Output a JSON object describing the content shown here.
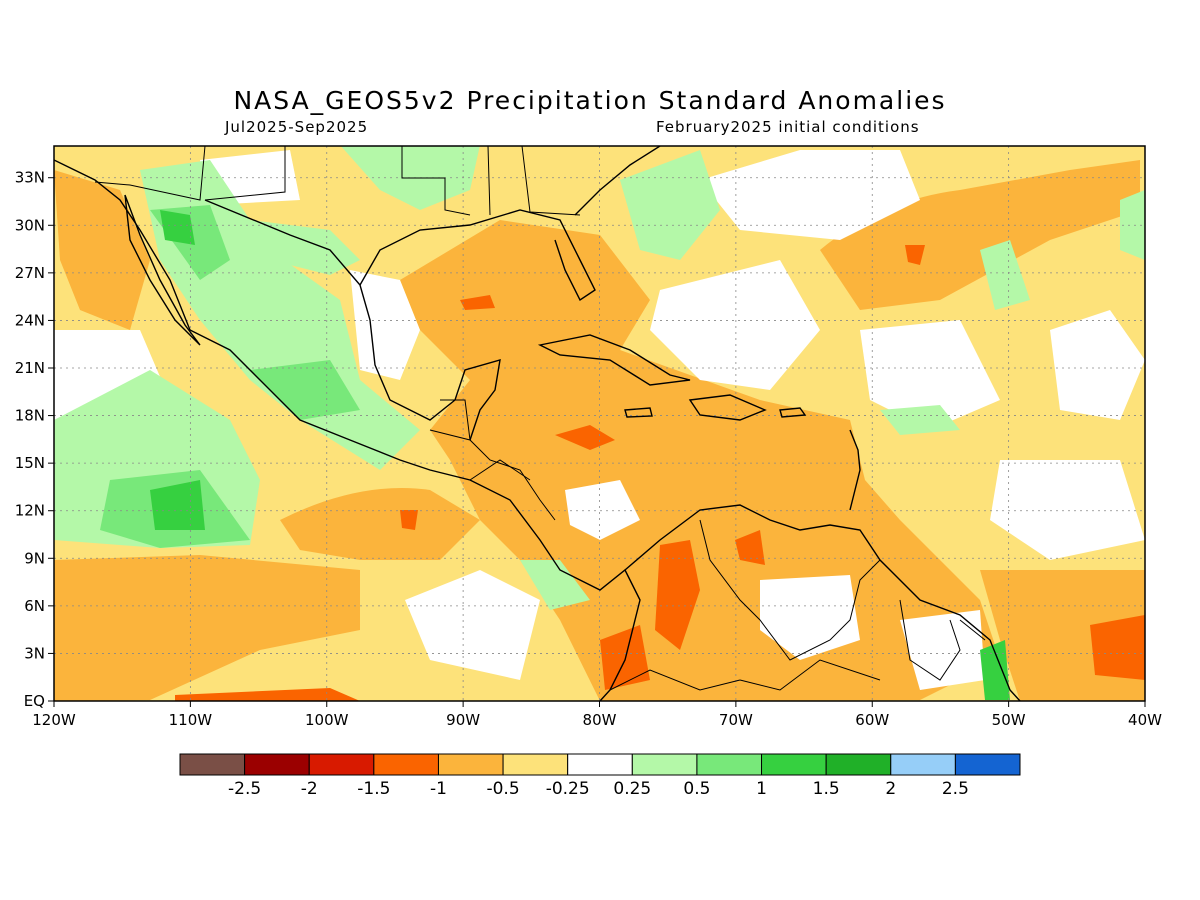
{
  "header": {
    "title": "NASA_GEOS5v2 Precipitation Standard Anomalies",
    "period": "Jul2025-Sep2025",
    "init": "February2025 initial conditions"
  },
  "map": {
    "lon_range": [
      -120,
      -40
    ],
    "lat_range": [
      0,
      35
    ],
    "x_ticks": [
      {
        "lon": -120,
        "label": "120W"
      },
      {
        "lon": -110,
        "label": "110W"
      },
      {
        "lon": -100,
        "label": "100W"
      },
      {
        "lon": -90,
        "label": "90W"
      },
      {
        "lon": -80,
        "label": "80W"
      },
      {
        "lon": -70,
        "label": "70W"
      },
      {
        "lon": -60,
        "label": "60W"
      },
      {
        "lon": -50,
        "label": "50W"
      },
      {
        "lon": -40,
        "label": "40W"
      }
    ],
    "y_ticks": [
      {
        "lat": 0,
        "label": "EQ"
      },
      {
        "lat": 3,
        "label": "3N"
      },
      {
        "lat": 6,
        "label": "6N"
      },
      {
        "lat": 9,
        "label": "9N"
      },
      {
        "lat": 12,
        "label": "12N"
      },
      {
        "lat": 15,
        "label": "15N"
      },
      {
        "lat": 18,
        "label": "18N"
      },
      {
        "lat": 21,
        "label": "21N"
      },
      {
        "lat": 24,
        "label": "24N"
      },
      {
        "lat": 27,
        "label": "27N"
      },
      {
        "lat": 30,
        "label": "30N"
      },
      {
        "lat": 33,
        "label": "33N"
      }
    ],
    "grid": true
  },
  "colorbar": {
    "colors": [
      "#7a4f46",
      "#9b0000",
      "#d81a00",
      "#fa6400",
      "#fbb43c",
      "#fde27a",
      "#ffffff",
      "#b4f8a8",
      "#78e87a",
      "#36d040",
      "#20b028",
      "#96cef8",
      "#1464d2"
    ],
    "labels": [
      "-2.5",
      "-2",
      "-1.5",
      "-1",
      "-0.5",
      "-0.25",
      "0.25",
      "0.5",
      "1",
      "1.5",
      "2",
      "2.5"
    ]
  }
}
